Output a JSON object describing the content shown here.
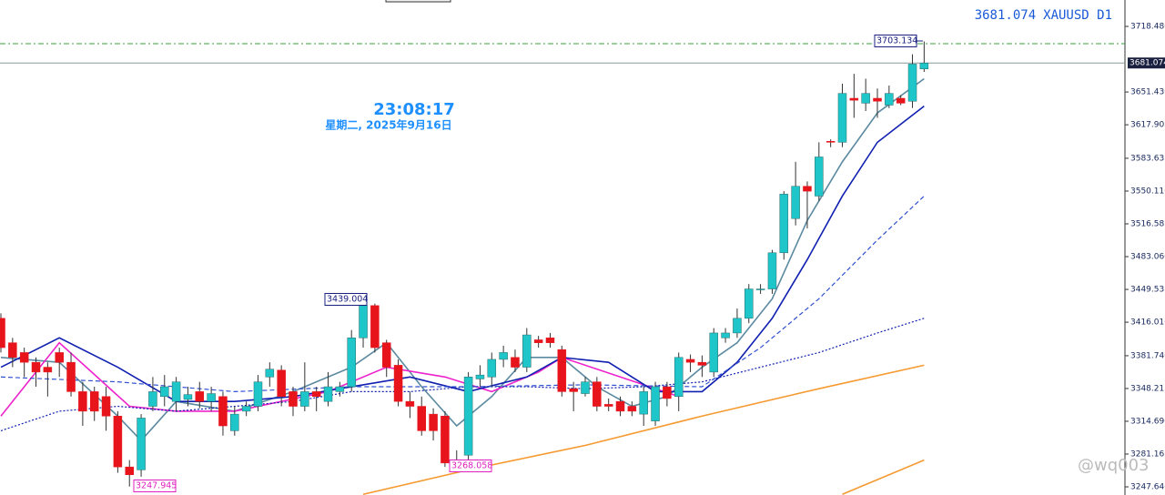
{
  "chart_data": {
    "type": "candlestick",
    "symbol": "XAUUSD D1",
    "last_price": 3681.074,
    "clock": "23:08:17",
    "date": "星期二, 2025年9月16日",
    "watermark": "@wq003",
    "up_color": "#1fc6c9",
    "down_color": "#e8141c",
    "ylim": [
      3239.3,
      3745.5
    ],
    "yticks": [
      {
        "value": 3718.48,
        "label": "3718.480"
      },
      {
        "value": 3651.43,
        "label": "3651.430"
      },
      {
        "value": 3617.905,
        "label": "3617.905"
      },
      {
        "value": 3583.635,
        "label": "3583.635"
      },
      {
        "value": 3550.11,
        "label": "3550.110"
      },
      {
        "value": 3516.585,
        "label": "3516.585"
      },
      {
        "value": 3483.06,
        "label": "3483.060"
      },
      {
        "value": 3449.535,
        "label": "3449.535"
      },
      {
        "value": 3416.01,
        "label": "3416.010"
      },
      {
        "value": 3381.74,
        "label": "3381.740"
      },
      {
        "value": 3348.215,
        "label": "3348.215"
      },
      {
        "value": 3314.69,
        "label": "3314.690"
      },
      {
        "value": 3281.165,
        "label": "3281.165"
      },
      {
        "value": 3247.64,
        "label": "3247.640"
      }
    ],
    "open": [
      3420,
      3395,
      3385,
      3375,
      3370,
      3385,
      3375,
      3345,
      3345,
      3340,
      3320,
      3268,
      3265,
      3330,
      3340,
      3335,
      3337,
      3345,
      3335,
      3340,
      3305,
      3325,
      3330,
      3360,
      3367,
      3345,
      3330,
      3345,
      3335,
      3345,
      3350,
      3400,
      3433,
      3395,
      3372,
      3335,
      3330,
      3322,
      3320,
      3272,
      3280,
      3358,
      3360,
      3378,
      3380,
      3370,
      3398,
      3400,
      3388,
      3348,
      3343,
      3355,
      3332,
      3335,
      3330,
      3322,
      3315,
      3350,
      3340,
      3378,
      3375,
      3365,
      3400,
      3405,
      3420,
      3450,
      3450,
      3487,
      3522,
      3555,
      3545,
      3601,
      3600,
      3645,
      3640,
      3645,
      3638,
      3645,
      3642,
      3675
    ],
    "high": [
      3425,
      3400,
      3390,
      3380,
      3375,
      3390,
      3385,
      3355,
      3350,
      3350,
      3325,
      3275,
      3322,
      3360,
      3362,
      3360,
      3350,
      3355,
      3350,
      3345,
      3330,
      3335,
      3362,
      3375,
      3372,
      3350,
      3375,
      3350,
      3365,
      3355,
      3408,
      3439.004,
      3435,
      3398,
      3378,
      3345,
      3340,
      3328,
      3325,
      3285,
      3365,
      3372,
      3385,
      3392,
      3388,
      3410,
      3402,
      3405,
      3392,
      3355,
      3360,
      3360,
      3338,
      3340,
      3335,
      3350,
      3355,
      3355,
      3385,
      3383,
      3382,
      3410,
      3410,
      3430,
      3455,
      3455,
      3490,
      3550,
      3580,
      3560,
      3600,
      3603,
      3660,
      3670,
      3665,
      3655,
      3658,
      3648,
      3690,
      3703.134
    ],
    "low": [
      3385,
      3370,
      3360,
      3350,
      3340,
      3360,
      3340,
      3310,
      3315,
      3305,
      3262,
      3247.945,
      3258,
      3325,
      3330,
      3325,
      3330,
      3328,
      3325,
      3300,
      3300,
      3320,
      3325,
      3350,
      3330,
      3320,
      3325,
      3325,
      3330,
      3340,
      3345,
      3390,
      3385,
      3360,
      3330,
      3318,
      3300,
      3295,
      3268,
      3268.058,
      3275,
      3350,
      3350,
      3370,
      3365,
      3365,
      3390,
      3390,
      3340,
      3325,
      3340,
      3325,
      3325,
      3320,
      3320,
      3310,
      3310,
      3330,
      3325,
      3365,
      3360,
      3360,
      3395,
      3400,
      3415,
      3445,
      3445,
      3480,
      3515,
      3512,
      3540,
      3595,
      3595,
      3625,
      3632,
      3625,
      3635,
      3638,
      3635,
      3672
    ],
    "close": [
      3390,
      3380,
      3375,
      3365,
      3365,
      3375,
      3345,
      3325,
      3325,
      3320,
      3268,
      3260,
      3318,
      3345,
      3350,
      3355,
      3342,
      3335,
      3343,
      3310,
      3322,
      3330,
      3355,
      3368,
      3340,
      3330,
      3345,
      3340,
      3350,
      3350,
      3400,
      3433,
      3390,
      3370,
      3335,
      3330,
      3305,
      3305,
      3272,
      3275,
      3360,
      3362,
      3378,
      3385,
      3370,
      3403,
      3395,
      3395,
      3345,
      3345,
      3355,
      3330,
      3330,
      3325,
      3325,
      3345,
      3350,
      3338,
      3380,
      3375,
      3372,
      3405,
      3405,
      3420,
      3450,
      3450,
      3487,
      3547,
      3555,
      3550,
      3585,
      3600,
      3650,
      3643,
      3650,
      3642,
      3650,
      3640,
      3680,
      3681.074
    ],
    "hlines": [
      {
        "value": 3700.8,
        "color": "#3aa03a",
        "style": "dashdot"
      }
    ],
    "lines": [
      {
        "color": "#5b8aa0",
        "style": "solid",
        "x": [
          0,
          5,
          10,
          12,
          15,
          20,
          25,
          30,
          33,
          36,
          39,
          42,
          45,
          48,
          51,
          54,
          57,
          60,
          63,
          66,
          69,
          72,
          75,
          79
        ],
        "values": [
          3380,
          3375,
          3320,
          3295,
          3335,
          3325,
          3345,
          3370,
          3395,
          3350,
          3310,
          3340,
          3380,
          3380,
          3350,
          3330,
          3340,
          3370,
          3395,
          3440,
          3520,
          3580,
          3630,
          3665
        ]
      },
      {
        "color": "#ee22cc",
        "style": "solid",
        "x": [
          0,
          5,
          11,
          15,
          20,
          28,
          33,
          38,
          42,
          46,
          48,
          53,
          58
        ],
        "values": [
          3320,
          3395,
          3330,
          3325,
          3325,
          3345,
          3370,
          3360,
          3345,
          3365,
          3380,
          3360,
          3340
        ]
      },
      {
        "color": "#1020b0",
        "style": "solid",
        "x": [
          0,
          5,
          10,
          15,
          20,
          25,
          30,
          35,
          40,
          45,
          48,
          52,
          56,
          60,
          63,
          66,
          69,
          72,
          75,
          79
        ],
        "values": [
          3370,
          3400,
          3370,
          3335,
          3335,
          3340,
          3350,
          3360,
          3345,
          3360,
          3380,
          3375,
          3345,
          3345,
          3375,
          3420,
          3480,
          3545,
          3600,
          3637
        ]
      },
      {
        "color": "#1020b0",
        "style": "dotted",
        "x": [
          0,
          5,
          10,
          15,
          20,
          25,
          30,
          35,
          40,
          45,
          50,
          55,
          60,
          65,
          70,
          75,
          79
        ],
        "values": [
          3305,
          3325,
          3330,
          3325,
          3330,
          3335,
          3345,
          3345,
          3350,
          3350,
          3348,
          3350,
          3355,
          3370,
          3385,
          3405,
          3420
        ]
      },
      {
        "color": "#3050d0",
        "style": "dashed",
        "x": [
          0,
          10,
          20,
          30,
          40,
          50,
          60,
          65,
          70,
          75,
          79
        ],
        "values": [
          3360,
          3355,
          3345,
          3350,
          3350,
          3352,
          3350,
          3390,
          3440,
          3500,
          3545
        ]
      },
      {
        "color": "#f59a30",
        "style": "solid",
        "x": [
          31,
          40,
          50,
          60,
          70,
          79
        ],
        "values": [
          3240,
          3265,
          3290,
          3320,
          3348,
          3372
        ]
      },
      {
        "color": "#f59a30",
        "style": "solid",
        "x": [
          72,
          79
        ],
        "values": [
          3240,
          3275
        ]
      }
    ]
  }
}
